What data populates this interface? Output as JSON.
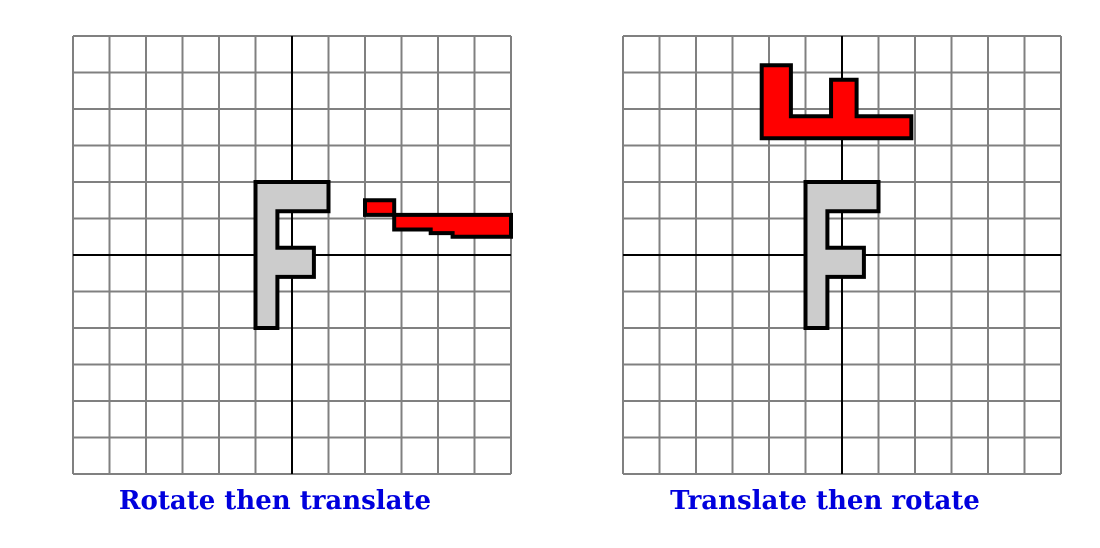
{
  "colors": {
    "grid_line": "#808080",
    "axis_line": "#000000",
    "original_fill": "#cccccc",
    "transformed_fill": "#ff0000",
    "outline": "#000000",
    "caption": "#0000dd"
  },
  "grid": {
    "x_range": [
      -6,
      6
    ],
    "y_range": [
      -6,
      6
    ],
    "step": 1
  },
  "panels": [
    {
      "caption": "Rotate then translate",
      "original_shape": [
        [
          -1,
          -2
        ],
        [
          -1,
          2
        ],
        [
          1,
          2
        ],
        [
          1,
          1.2
        ],
        [
          -0.4,
          1.2
        ],
        [
          -0.4,
          0.2
        ],
        [
          0.6,
          0.2
        ],
        [
          0.6,
          -0.6
        ],
        [
          -0.4,
          -0.6
        ],
        [
          -0.4,
          -2
        ]
      ],
      "transformed_shape": [
        [
          2,
          1.1
        ],
        [
          6,
          1.1
        ],
        [
          6,
          0.5
        ],
        [
          4.4,
          0.5
        ],
        [
          4.4,
          0.6
        ],
        [
          3.8,
          0.6
        ],
        [
          3.8,
          0.7
        ],
        [
          2.8,
          0.7
        ],
        [
          2.8,
          1.5
        ],
        [
          2,
          1.5
        ]
      ]
    },
    {
      "caption": "Translate then rotate",
      "original_shape": [
        [
          -1,
          -2
        ],
        [
          -1,
          2
        ],
        [
          1,
          2
        ],
        [
          1,
          1.2
        ],
        [
          -0.4,
          1.2
        ],
        [
          -0.4,
          0.2
        ],
        [
          0.6,
          0.2
        ],
        [
          0.6,
          -0.6
        ],
        [
          -0.4,
          -0.6
        ],
        [
          -0.4,
          -2
        ]
      ],
      "transformed_shape": [
        [
          -2.2,
          5.2
        ],
        [
          -2.2,
          3.2
        ],
        [
          1.9,
          3.2
        ],
        [
          1.9,
          3.8
        ],
        [
          0.4,
          3.8
        ],
        [
          0.4,
          4.8
        ],
        [
          -0.3,
          4.8
        ],
        [
          -0.3,
          3.8
        ],
        [
          -1.4,
          3.8
        ],
        [
          -1.4,
          5.2
        ]
      ]
    }
  ]
}
